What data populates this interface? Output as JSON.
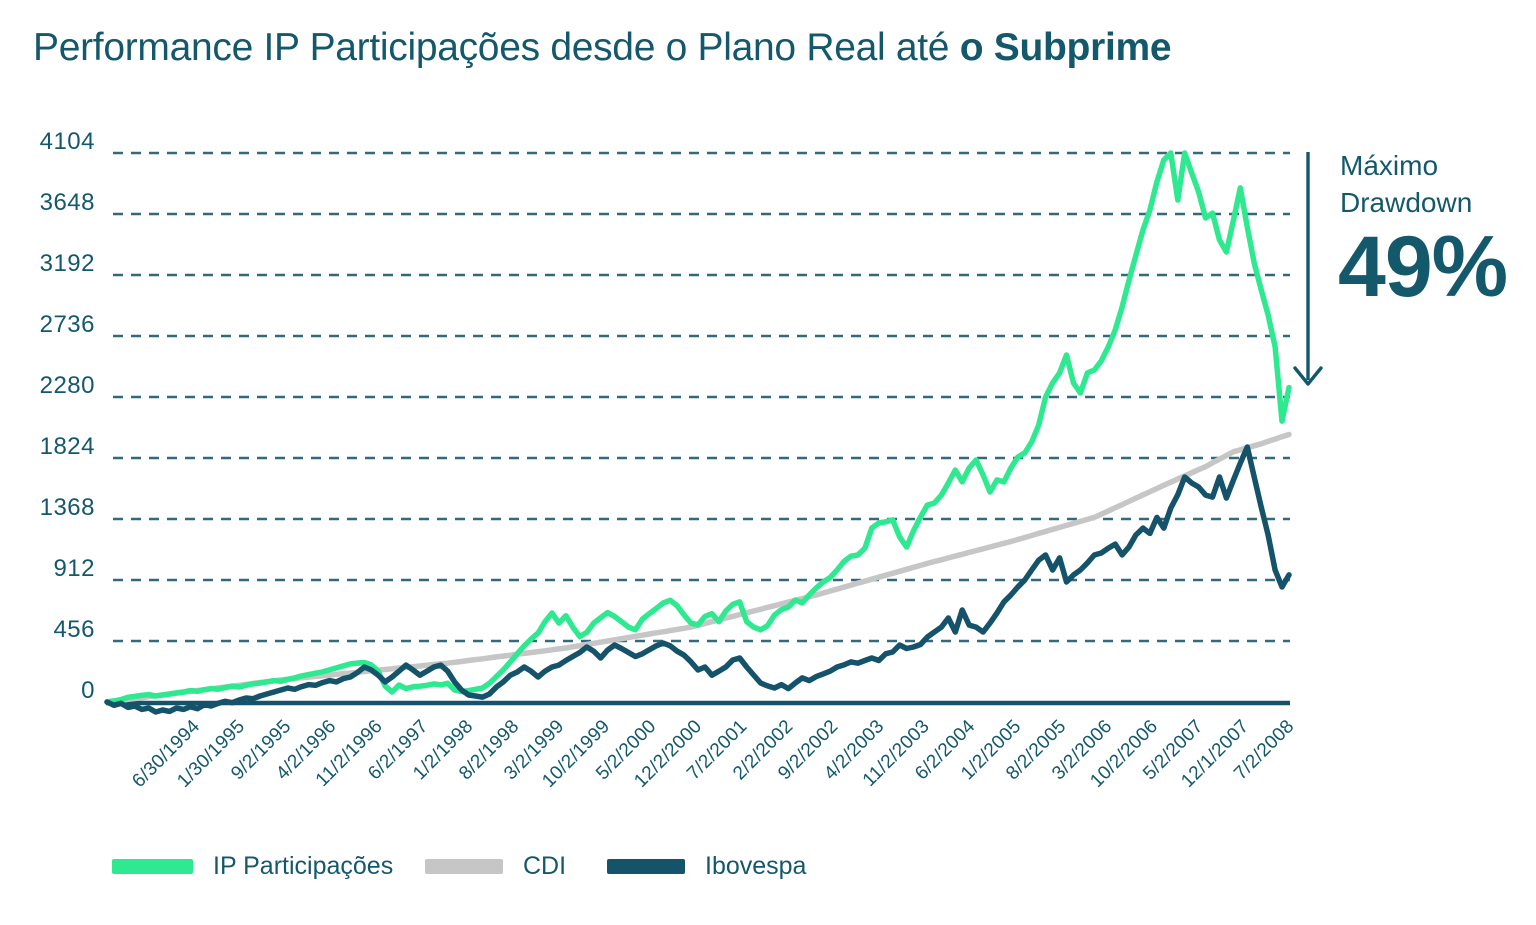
{
  "title": {
    "normal": "Performance IP Participações desde o Plano Real até ",
    "bold": "o Subprime"
  },
  "annotation": {
    "line1": "Máximo",
    "line2": "Drawdown",
    "value": "49%"
  },
  "legend": [
    {
      "label": "IP Participações",
      "color": "#2ee98f"
    },
    {
      "label": "CDI",
      "color": "#c6c6c6"
    },
    {
      "label": "Ibovespa",
      "color": "#15536a"
    }
  ],
  "colors": {
    "text_teal": "#14586c",
    "gridline": "#33697f",
    "axis": "#15536a",
    "background": "#ffffff"
  },
  "chart_data": {
    "type": "line",
    "title": "Performance IP Participações desde o Plano Real até o Subprime",
    "xlabel": "",
    "ylabel": "",
    "ylim": [
      0,
      4104
    ],
    "yticks": [
      0,
      456,
      912,
      1368,
      1824,
      2280,
      2736,
      3192,
      3648,
      4104
    ],
    "grid": "horizontal-dashed",
    "legend_position": "bottom",
    "x_frequency": "monthly",
    "x_tick_every": 7,
    "x_tick_labels": [
      "6/30/1994",
      "1/30/1995",
      "9/2/1995",
      "4/2/1996",
      "11/2/1996",
      "6/2/1997",
      "1/2/1998",
      "8/2/1998",
      "3/2/1999",
      "10/2/1999",
      "5/2/2000",
      "12/2/2000",
      "7/2/2001",
      "2/2/2002",
      "9/2/2002",
      "4/2/2003",
      "11/2/2003",
      "6/2/2004",
      "1/2/2005",
      "8/2/2005",
      "3/2/2006",
      "10/2/2006",
      "5/2/2007",
      "12/1/2007",
      "7/2/2008"
    ],
    "series": [
      {
        "name": "CDI",
        "color": "#c6c6c6",
        "values": [
          0,
          7,
          13,
          20,
          26,
          33,
          40,
          46,
          53,
          59,
          66,
          73,
          79,
          86,
          92,
          99,
          106,
          112,
          119,
          125,
          132,
          139,
          145,
          152,
          158,
          165,
          170,
          175,
          181,
          186,
          191,
          196,
          201,
          207,
          212,
          217,
          222,
          228,
          233,
          238,
          243,
          248,
          254,
          259,
          264,
          269,
          275,
          280,
          285,
          290,
          297,
          303,
          310,
          317,
          323,
          330,
          337,
          343,
          350,
          357,
          363,
          370,
          377,
          383,
          390,
          397,
          404,
          413,
          421,
          430,
          439,
          447,
          456,
          465,
          473,
          482,
          491,
          499,
          508,
          517,
          525,
          534,
          543,
          551,
          560,
          573,
          587,
          600,
          613,
          627,
          640,
          653,
          667,
          680,
          693,
          707,
          720,
          733,
          747,
          760,
          773,
          787,
          800,
          815,
          830,
          844,
          859,
          874,
          889,
          903,
          918,
          933,
          948,
          962,
          977,
          992,
          1007,
          1021,
          1036,
          1050,
          1063,
          1077,
          1091,
          1104,
          1118,
          1132,
          1145,
          1159,
          1173,
          1186,
          1200,
          1215,
          1230,
          1245,
          1260,
          1275,
          1290,
          1305,
          1320,
          1335,
          1350,
          1365,
          1380,
          1404,
          1428,
          1452,
          1476,
          1500,
          1524,
          1548,
          1572,
          1596,
          1620,
          1643,
          1667,
          1690,
          1713,
          1737,
          1760,
          1788,
          1815,
          1843,
          1870,
          1885,
          1900,
          1915,
          1930,
          1948,
          1965,
          1983,
          2000
        ]
      },
      {
        "name": "IP Participações",
        "color": "#2ee98f",
        "values": [
          0,
          8,
          18,
          35,
          42,
          50,
          55,
          45,
          52,
          60,
          68,
          75,
          85,
          80,
          92,
          100,
          96,
          108,
          118,
          112,
          125,
          135,
          142,
          150,
          160,
          155,
          170,
          180,
          195,
          205,
          215,
          225,
          240,
          255,
          270,
          285,
          291,
          295,
          277,
          230,
          120,
          75,
          127,
          100,
          113,
          118,
          125,
          135,
          128,
          140,
          90,
          78,
          85,
          95,
          105,
          140,
          190,
          240,
          300,
          360,
          420,
          470,
          516,
          600,
          665,
          590,
          645,
          560,
          490,
          520,
          590,
          630,
          668,
          640,
          600,
          560,
          540,
          620,
          660,
          700,
          740,
          760,
          720,
          650,
          590,
          576,
          640,
          660,
          600,
          680,
          730,
          748,
          600,
          560,
          540,
          570,
          650,
          690,
          710,
          762,
          740,
          800,
          852,
          897,
          930,
          987,
          1050,
          1090,
          1099,
          1150,
          1301,
          1338,
          1346,
          1361,
          1234,
          1159,
          1280,
          1383,
          1473,
          1487,
          1547,
          1637,
          1734,
          1645,
          1749,
          1809,
          1697,
          1570,
          1660,
          1645,
          1749,
          1831,
          1862,
          1944,
          2071,
          2280,
          2385,
          2460,
          2594,
          2385,
          2310,
          2460,
          2482,
          2550,
          2654,
          2781,
          2953,
          3155,
          3342,
          3529,
          3678,
          3888,
          4052,
          4104,
          3753,
          4104,
          3955,
          3813,
          3618,
          3655,
          3454,
          3364,
          3600,
          3843,
          3550,
          3282,
          3081,
          2894,
          2655,
          2100,
          2350
        ]
      },
      {
        "name": "Ibovespa",
        "color": "#15536a",
        "values": [
          0,
          -25,
          -10,
          -40,
          -30,
          -55,
          -45,
          -75,
          -60,
          -70,
          -45,
          -55,
          -35,
          -50,
          -20,
          -30,
          -10,
          5,
          -5,
          15,
          30,
          25,
          45,
          60,
          75,
          90,
          105,
          95,
          115,
          130,
          125,
          145,
          160,
          150,
          175,
          187,
          220,
          262,
          240,
          200,
          150,
          187,
          230,
          276,
          240,
          200,
          230,
          262,
          276,
          230,
          150,
          90,
          52,
          45,
          37,
          60,
          112,
          150,
          200,
          224,
          262,
          230,
          187,
          230,
          262,
          276,
          310,
          340,
          370,
          411,
          380,
          329,
          388,
          426,
          400,
          370,
          340,
          360,
          390,
          420,
          440,
          420,
          380,
          350,
          300,
          239,
          262,
          200,
          230,
          262,
          314,
          329,
          262,
          202,
          142,
          120,
          105,
          130,
          100,
          142,
          180,
          160,
          190,
          210,
          230,
          262,
          277,
          300,
          290,
          310,
          329,
          310,
          360,
          374,
          426,
          400,
          411,
          430,
          486,
          523,
          560,
          628,
          523,
          688,
          575,
          560,
          523,
          590,
          665,
          748,
          800,
          860,
          912,
          987,
          1060,
          1099,
          987,
          1077,
          897,
          950,
          987,
          1040,
          1099,
          1114,
          1150,
          1180,
          1100,
          1160,
          1250,
          1300,
          1260,
          1380,
          1300,
          1450,
          1550,
          1682,
          1637,
          1607,
          1547,
          1532,
          1682,
          1525,
          1659,
          1786,
          1906,
          1682,
          1458,
          1249,
          987,
          860,
          950
        ]
      }
    ],
    "annotations": [
      {
        "text": "Máximo Drawdown 49%",
        "type": "down-arrow",
        "applies_to": "IP Participações peak to trough"
      }
    ]
  },
  "layout_note": ""
}
